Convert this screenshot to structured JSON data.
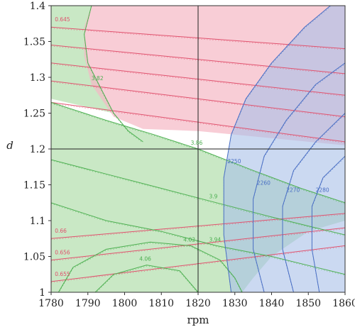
{
  "chart_data": {
    "type": "contour",
    "title": "",
    "xlabel": "rpm",
    "ylabel": "d",
    "xlim": [
      1780,
      1860
    ],
    "ylim": [
      1.0,
      1.4
    ],
    "xticks": [
      "1780",
      "1790",
      "1800",
      "1810",
      "1820",
      "1830",
      "1840",
      "1850",
      "1860"
    ],
    "yticks": [
      "1",
      "1.05",
      "1.1",
      "1.15",
      "1.2",
      "1.25",
      "1.3",
      "1.35",
      "1.4"
    ],
    "crosshair": {
      "rpm": 1820,
      "d": 1.2
    },
    "colors": {
      "red_region": "#f5b8c4",
      "green_region": "#b7e0b2",
      "blue_region": "#a9bfe8",
      "red_line": "#e0526e",
      "green_line": "#4caf50",
      "blue_line": "#4a6fc4",
      "crosshair": "#222222"
    },
    "red_contours": [
      {
        "label": "0.645",
        "points": [
          [
            1780,
            1.37
          ],
          [
            1860,
            1.34
          ]
        ]
      },
      {
        "label": "",
        "points": [
          [
            1780,
            1.345
          ],
          [
            1860,
            1.305
          ]
        ]
      },
      {
        "label": "",
        "points": [
          [
            1780,
            1.32
          ],
          [
            1860,
            1.275
          ]
        ]
      },
      {
        "label": "",
        "points": [
          [
            1780,
            1.295
          ],
          [
            1860,
            1.245
          ]
        ]
      },
      {
        "label": "",
        "points": [
          [
            1780,
            1.265
          ],
          [
            1860,
            1.21
          ]
        ]
      },
      {
        "label": "0.66",
        "points": [
          [
            1780,
            1.075
          ],
          [
            1860,
            1.11
          ]
        ]
      },
      {
        "label": "0.656",
        "points": [
          [
            1780,
            1.045
          ],
          [
            1860,
            1.09
          ]
        ]
      },
      {
        "label": "0.655",
        "points": [
          [
            1780,
            1.015
          ],
          [
            1860,
            1.065
          ]
        ]
      }
    ],
    "green_contours": [
      {
        "label": "3.82",
        "points": [
          [
            1791,
            1.4
          ],
          [
            1789,
            1.36
          ],
          [
            1790,
            1.32
          ],
          [
            1793,
            1.29
          ],
          [
            1797,
            1.25
          ],
          [
            1801,
            1.225
          ],
          [
            1805,
            1.21
          ]
        ]
      },
      {
        "label": "3.86",
        "points": [
          [
            1780,
            1.265
          ],
          [
            1795,
            1.24
          ],
          [
            1808,
            1.22
          ],
          [
            1820,
            1.2
          ],
          [
            1835,
            1.17
          ],
          [
            1848,
            1.145
          ],
          [
            1860,
            1.125
          ]
        ]
      },
      {
        "label": "3.9",
        "points": [
          [
            1780,
            1.185
          ],
          [
            1795,
            1.165
          ],
          [
            1810,
            1.145
          ],
          [
            1825,
            1.125
          ],
          [
            1840,
            1.105
          ],
          [
            1852,
            1.09
          ],
          [
            1860,
            1.08
          ]
        ]
      },
      {
        "label": "3.94",
        "points": [
          [
            1780,
            1.125
          ],
          [
            1795,
            1.1
          ],
          [
            1810,
            1.085
          ],
          [
            1825,
            1.065
          ],
          [
            1840,
            1.05
          ],
          [
            1852,
            1.035
          ],
          [
            1860,
            1.025
          ]
        ]
      },
      {
        "label": "4.02",
        "points": [
          [
            1782,
            1.0
          ],
          [
            1786,
            1.035
          ],
          [
            1795,
            1.06
          ],
          [
            1807,
            1.07
          ],
          [
            1818,
            1.065
          ],
          [
            1826,
            1.045
          ],
          [
            1830,
            1.02
          ],
          [
            1832,
            1.0
          ]
        ]
      },
      {
        "label": "4.06",
        "points": [
          [
            1792,
            1.0
          ],
          [
            1797,
            1.025
          ],
          [
            1806,
            1.038
          ],
          [
            1815,
            1.03
          ],
          [
            1820,
            1.0
          ]
        ]
      }
    ],
    "blue_contours": [
      {
        "label": "2250",
        "points": [
          [
            1829,
            1.0
          ],
          [
            1827,
            1.08
          ],
          [
            1827,
            1.16
          ],
          [
            1829,
            1.22
          ],
          [
            1833,
            1.27
          ],
          [
            1840,
            1.32
          ],
          [
            1849,
            1.37
          ],
          [
            1856,
            1.4
          ]
        ]
      },
      {
        "label": "2260",
        "points": [
          [
            1838,
            1.0
          ],
          [
            1835,
            1.06
          ],
          [
            1835,
            1.13
          ],
          [
            1838,
            1.19
          ],
          [
            1844,
            1.24
          ],
          [
            1852,
            1.29
          ],
          [
            1860,
            1.32
          ]
        ]
      },
      {
        "label": "2270",
        "points": [
          [
            1846,
            1.0
          ],
          [
            1843,
            1.06
          ],
          [
            1843,
            1.12
          ],
          [
            1846,
            1.17
          ],
          [
            1852,
            1.21
          ],
          [
            1860,
            1.25
          ]
        ]
      },
      {
        "label": "2280",
        "points": [
          [
            1853,
            1.0
          ],
          [
            1851,
            1.06
          ],
          [
            1851,
            1.12
          ],
          [
            1854,
            1.16
          ],
          [
            1860,
            1.19
          ]
        ]
      }
    ],
    "regions": {
      "red": [
        [
          1780,
          1.4
        ],
        [
          1860,
          1.4
        ],
        [
          1860,
          1.205
        ],
        [
          1840,
          1.215
        ],
        [
          1820,
          1.225
        ],
        [
          1805,
          1.228
        ],
        [
          1797,
          1.245
        ],
        [
          1791,
          1.29
        ],
        [
          1789,
          1.33
        ],
        [
          1789,
          1.37
        ],
        [
          1791,
          1.4
        ]
      ],
      "green": [
        [
          1780,
          1.0
        ],
        [
          1832,
          1.0
        ],
        [
          1835,
          1.02
        ],
        [
          1840,
          1.05
        ],
        [
          1850,
          1.085
        ],
        [
          1860,
          1.1
        ],
        [
          1860,
          1.125
        ],
        [
          1848,
          1.145
        ],
        [
          1835,
          1.17
        ],
        [
          1820,
          1.2
        ],
        [
          1808,
          1.22
        ],
        [
          1795,
          1.24
        ],
        [
          1780,
          1.265
        ],
        [
          1780,
          1.4
        ],
        [
          1791,
          1.4
        ],
        [
          1789,
          1.36
        ],
        [
          1790,
          1.32
        ],
        [
          1793,
          1.29
        ],
        [
          1797,
          1.25
        ],
        [
          1780,
          1.27
        ]
      ],
      "blue": [
        [
          1829,
          1.0
        ],
        [
          1827,
          1.08
        ],
        [
          1827,
          1.16
        ],
        [
          1829,
          1.22
        ],
        [
          1833,
          1.27
        ],
        [
          1840,
          1.32
        ],
        [
          1849,
          1.37
        ],
        [
          1856,
          1.4
        ],
        [
          1860,
          1.4
        ],
        [
          1860,
          1.0
        ]
      ]
    }
  }
}
